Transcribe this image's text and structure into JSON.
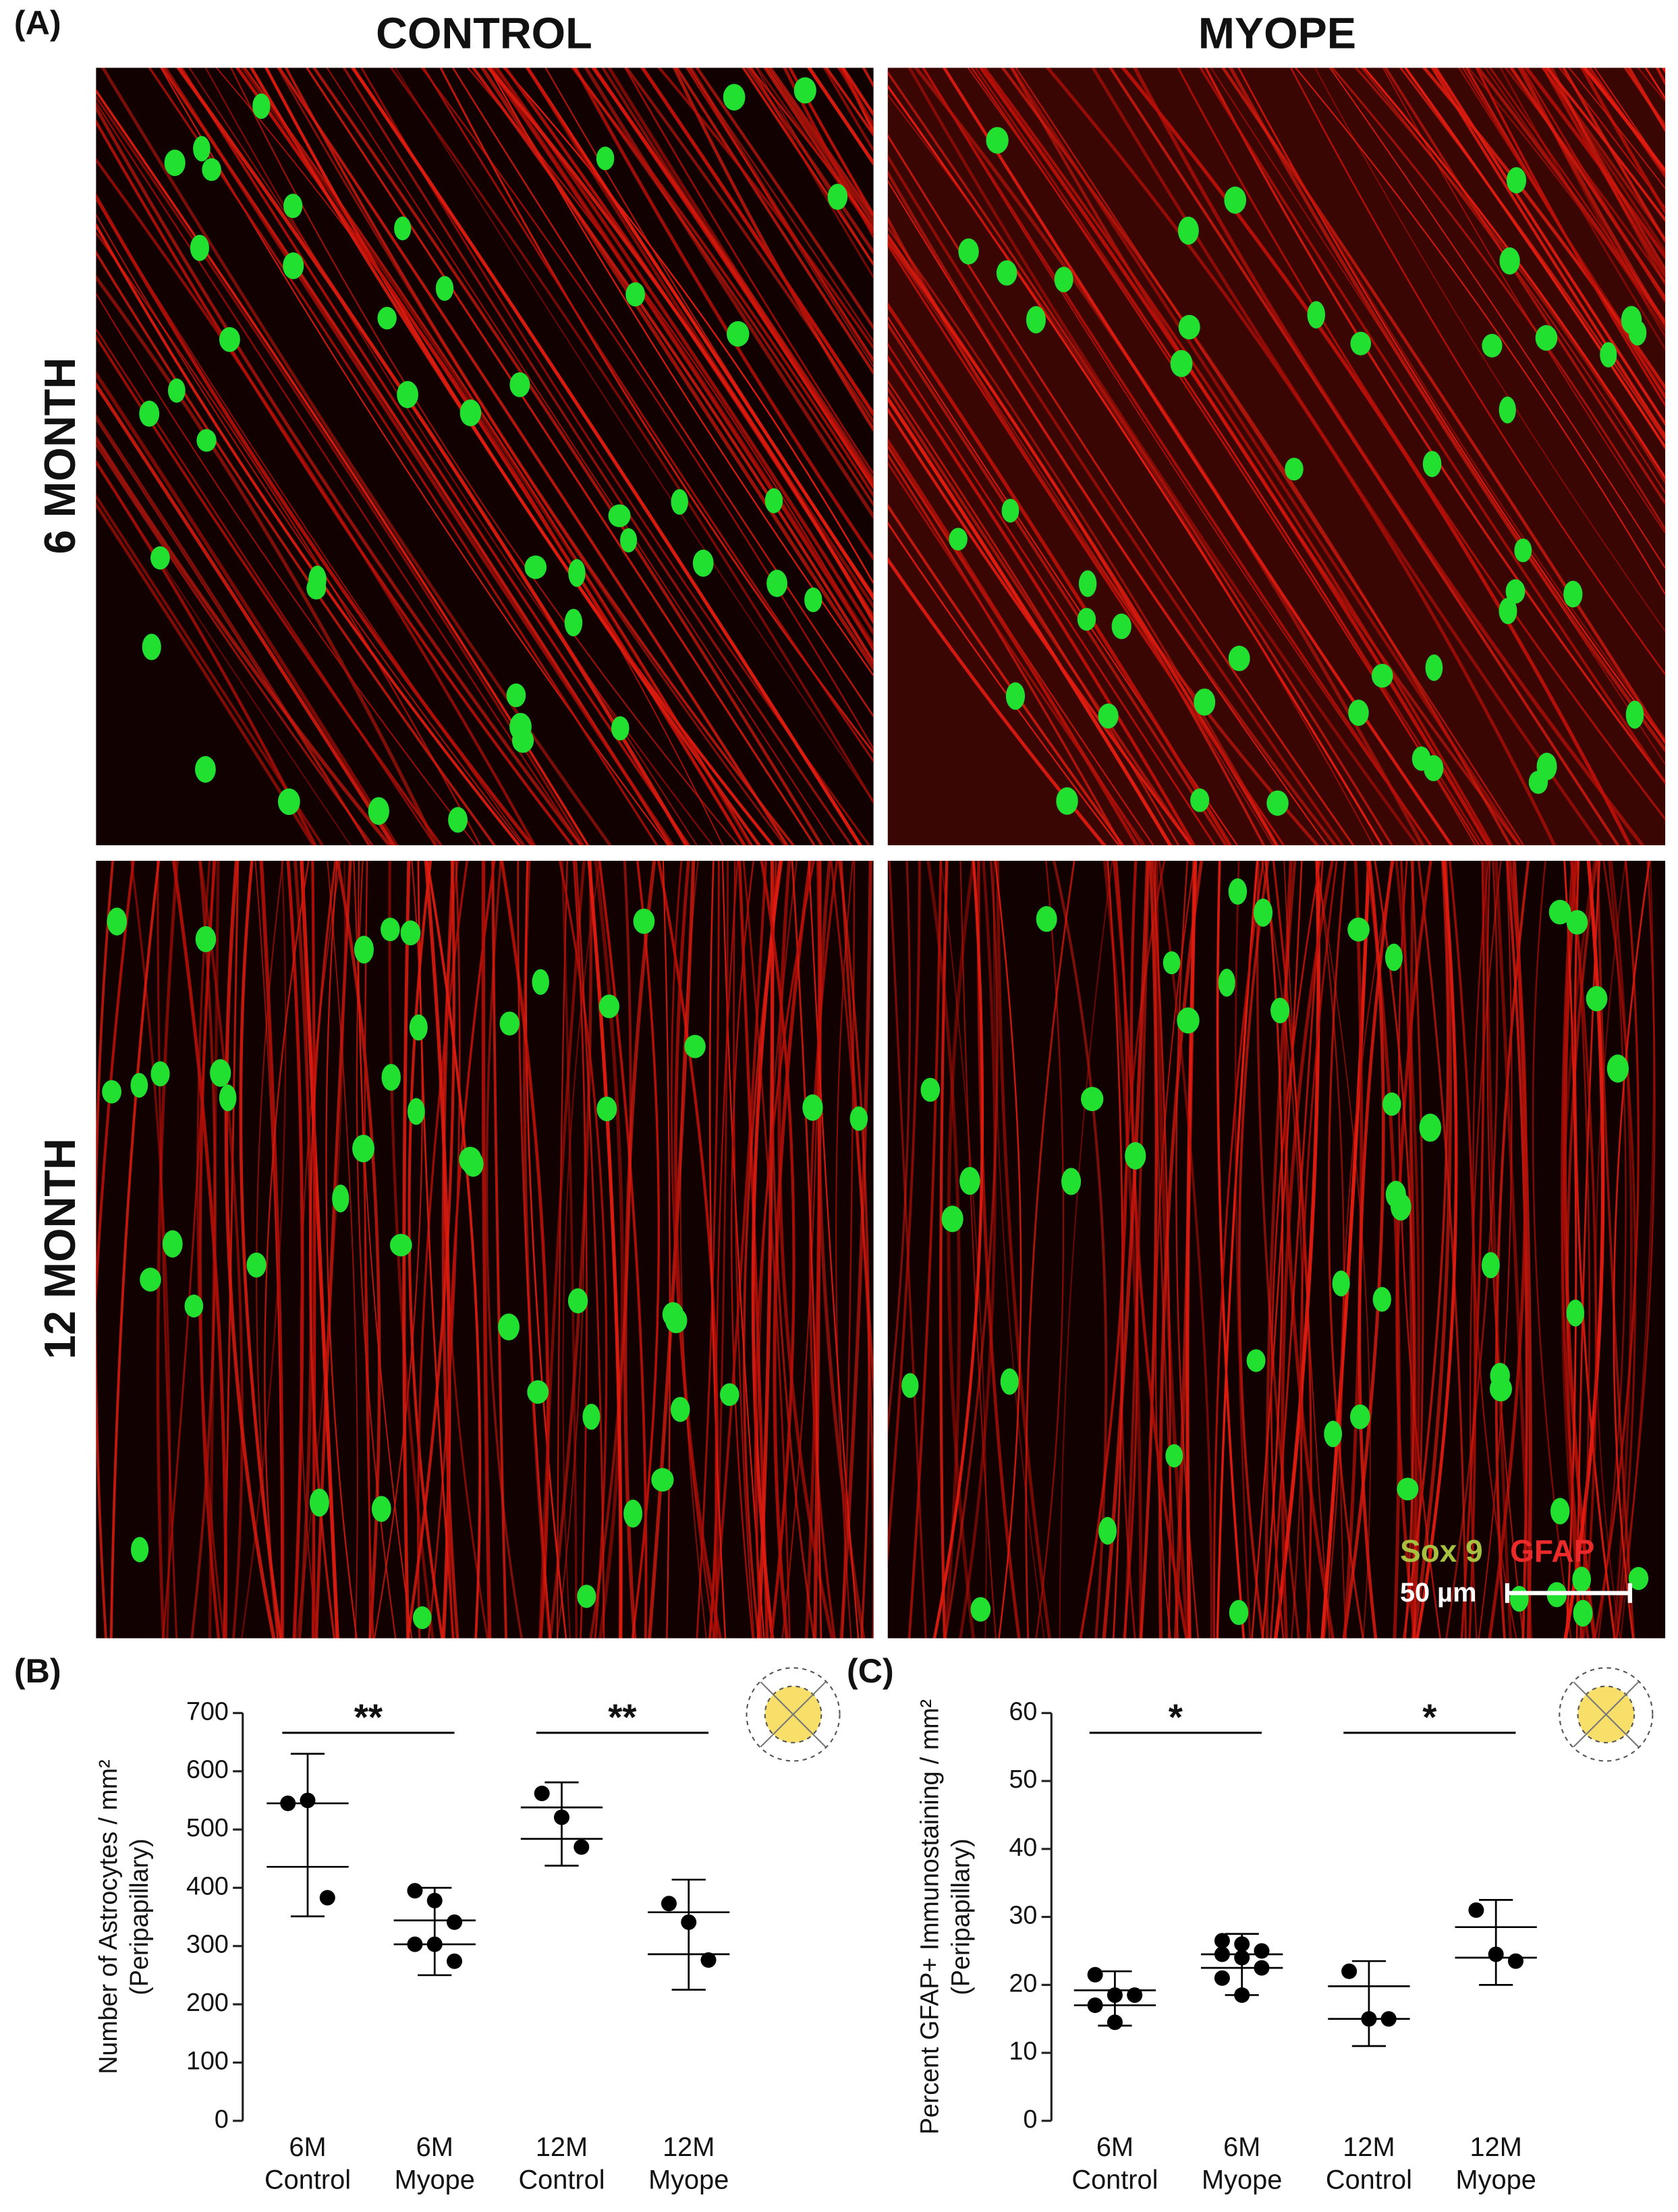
{
  "figure": {
    "panel_labels": [
      "(A)",
      "(B)",
      "(C)"
    ],
    "columns": [
      "CONTROL",
      "MYOPE"
    ],
    "rows": [
      "6 MONTH",
      "12 MONTH"
    ],
    "legend": [
      "Sox 9",
      "GFAP"
    ],
    "scale_bar": "50 µm"
  },
  "chart_data": [
    {
      "type": "dotplot",
      "ylabel": [
        "Number of Astrocytes / mm²",
        "(Peripapillary)"
      ],
      "categories": [
        [
          "6M",
          "Control"
        ],
        [
          "6M",
          "Myope"
        ],
        [
          "12M",
          "Control"
        ],
        [
          "12M",
          "Myope"
        ]
      ],
      "groups": [
        {
          "points": [
            545,
            550,
            383
          ],
          "whisker": [
            351,
            630
          ],
          "band": [
            436,
            545
          ]
        },
        {
          "points": [
            395,
            378,
            341,
            303,
            303,
            274
          ],
          "whisker": [
            250,
            400
          ],
          "band": [
            303,
            344
          ]
        },
        {
          "points": [
            562,
            521,
            470
          ],
          "whisker": [
            438,
            581
          ],
          "band": [
            484,
            538
          ]
        },
        {
          "points": [
            373,
            341,
            276
          ],
          "whisker": [
            225,
            414
          ],
          "band": [
            286,
            358
          ]
        }
      ],
      "color": "#000000",
      "ylim": [
        0,
        700
      ],
      "yticks": [
        0,
        100,
        200,
        300,
        400,
        500,
        600,
        700
      ],
      "significance": [
        {
          "groups": [
            0,
            1
          ],
          "label": "**"
        },
        {
          "groups": [
            2,
            3
          ],
          "label": "**"
        }
      ]
    },
    {
      "type": "dotplot",
      "ylabel": [
        "Percent GFAP+ Immunostaining / mm²",
        "(Peripapillary)"
      ],
      "categories": [
        [
          "6M",
          "Control"
        ],
        [
          "6M",
          "Myope"
        ],
        [
          "12M",
          "Control"
        ],
        [
          "12M",
          "Myope"
        ]
      ],
      "groups": [
        {
          "points": [
            21.5,
            18.5,
            18.5,
            17,
            14.5
          ],
          "whisker": [
            14,
            22
          ],
          "band": [
            17,
            19.2
          ]
        },
        {
          "points": [
            26.5,
            26,
            25,
            24.5,
            24,
            22.5,
            21,
            18.5
          ],
          "whisker": [
            18.5,
            27.5
          ],
          "band": [
            22.5,
            24.5
          ]
        },
        {
          "points": [
            22,
            15,
            15
          ],
          "whisker": [
            11,
            23.5
          ],
          "band": [
            15,
            19.8
          ]
        },
        {
          "points": [
            31,
            24.5,
            23.5
          ],
          "whisker": [
            20,
            32.5
          ],
          "band": [
            24,
            28.5
          ]
        }
      ],
      "color": "#000000",
      "ylim": [
        0,
        60
      ],
      "yticks": [
        0,
        10,
        20,
        30,
        40,
        50,
        60
      ],
      "significance": [
        {
          "groups": [
            0,
            1
          ],
          "label": "*"
        },
        {
          "groups": [
            2,
            3
          ],
          "label": "*"
        }
      ]
    }
  ]
}
